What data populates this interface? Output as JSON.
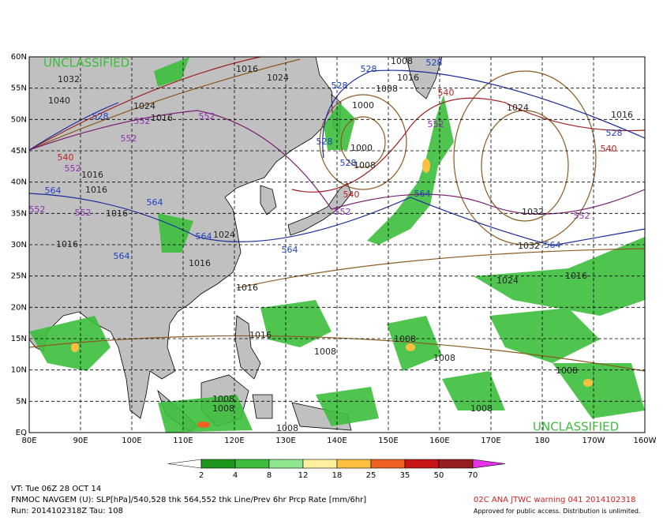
{
  "map": {
    "lat_labels": [
      "60N",
      "55N",
      "50N",
      "45N",
      "40N",
      "35N",
      "30N",
      "25N",
      "20N",
      "15N",
      "10N",
      "5N",
      "EQ"
    ],
    "lon_labels": [
      "80E",
      "90E",
      "100E",
      "110E",
      "120E",
      "130E",
      "140E",
      "150E",
      "160E",
      "170E",
      "180",
      "170W",
      "160W"
    ],
    "classification": [
      "UNCLASSIFIED",
      "UNCLASSIFIED"
    ],
    "contour_labels": {
      "slp": [
        "1032",
        "1040",
        "1024",
        "1016",
        "1024",
        "1016",
        "1016",
        "1016",
        "1016",
        "1016",
        "1016",
        "1024",
        "1016",
        "1000",
        "1000",
        "1008",
        "1008",
        "1016",
        "1024",
        "1032",
        "1032",
        "1024",
        "1016",
        "1016",
        "1016",
        "1008",
        "1008",
        "1008",
        "1008",
        "1008",
        "1008",
        "1008",
        "1008",
        "1008"
      ],
      "thk_528": [
        "528",
        "528",
        "528",
        "528",
        "528",
        "528",
        "528"
      ],
      "thk_540": [
        "540",
        "540",
        "540",
        "540"
      ],
      "thk_552": [
        "552",
        "552",
        "552",
        "552",
        "552",
        "552",
        "552",
        "552",
        "552"
      ],
      "thk_564": [
        "564",
        "564",
        "564",
        "564",
        "564",
        "564",
        "564"
      ]
    },
    "contour_colors": {
      "slp": "#222222",
      "thk_528": "#2040c0",
      "thk_540": "#c02020",
      "thk_552": "#9030b0",
      "thk_564": "#2040c0"
    }
  },
  "colorbar": {
    "levels": [
      2,
      4,
      8,
      12,
      18,
      25,
      35,
      50,
      70
    ],
    "colors": [
      "#1e961e",
      "#3cbe3c",
      "#8ee68e",
      "#fff0a0",
      "#ffc040",
      "#f06020",
      "#c81414",
      "#961e1e"
    ],
    "over_color": "#e632e6"
  },
  "footer": {
    "valid_time": "VT: Tue 06Z 28 OCT 14",
    "product": "FNMOC NAVGEM (U): SLP[hPa]/540,528 thk 564,552 thk Line/Prev 6hr Prcp Rate [mm/6hr]",
    "run": "Run: 2014102318Z Tau: 108",
    "warning": "02C ANA JTWC warning 041 2014102318",
    "release": "Approved for public access. Distribution is unlimited."
  }
}
